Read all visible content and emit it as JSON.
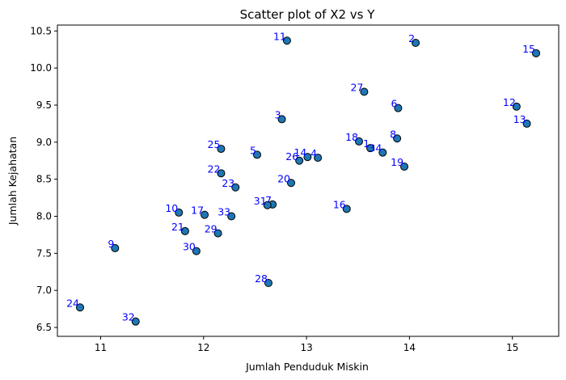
{
  "chart_data": {
    "type": "scatter",
    "title": "Scatter plot of X2 vs Y",
    "xlabel": "Jumlah Penduduk Miskin",
    "ylabel": "Jumlah Kejahatan",
    "xlim": [
      10.58,
      15.45
    ],
    "ylim": [
      6.38,
      10.58
    ],
    "xticks": [
      11,
      12,
      13,
      14,
      15
    ],
    "yticks": [
      6.5,
      7.0,
      7.5,
      8.0,
      8.5,
      9.0,
      9.5,
      10.0,
      10.5
    ],
    "grid": false,
    "marker_color": "#1f77b4",
    "marker_edge_color": "#000000",
    "label_color": "#0000ff",
    "points": [
      {
        "label": "1",
        "x": 13.62,
        "y": 8.92
      },
      {
        "label": "2",
        "x": 14.06,
        "y": 10.34
      },
      {
        "label": "3",
        "x": 12.76,
        "y": 9.31
      },
      {
        "label": "4",
        "x": 13.11,
        "y": 8.79
      },
      {
        "label": "5",
        "x": 12.52,
        "y": 8.83
      },
      {
        "label": "6",
        "x": 13.89,
        "y": 9.46
      },
      {
        "label": "7",
        "x": 12.67,
        "y": 8.16
      },
      {
        "label": "8",
        "x": 13.88,
        "y": 9.05
      },
      {
        "label": "9",
        "x": 11.14,
        "y": 7.57
      },
      {
        "label": "10",
        "x": 11.76,
        "y": 8.05
      },
      {
        "label": "11",
        "x": 12.81,
        "y": 10.37
      },
      {
        "label": "12",
        "x": 15.04,
        "y": 9.48
      },
      {
        "label": "13",
        "x": 15.14,
        "y": 9.25
      },
      {
        "label": "14",
        "x": 13.01,
        "y": 8.8
      },
      {
        "label": "15",
        "x": 15.23,
        "y": 10.2
      },
      {
        "label": "16",
        "x": 13.39,
        "y": 8.1
      },
      {
        "label": "17",
        "x": 12.01,
        "y": 8.02
      },
      {
        "label": "18",
        "x": 13.51,
        "y": 9.01
      },
      {
        "label": "19",
        "x": 13.95,
        "y": 8.67
      },
      {
        "label": "20",
        "x": 12.85,
        "y": 8.45
      },
      {
        "label": "21",
        "x": 11.82,
        "y": 7.8
      },
      {
        "label": "22",
        "x": 12.17,
        "y": 8.58
      },
      {
        "label": "23",
        "x": 12.31,
        "y": 8.39
      },
      {
        "label": "24",
        "x": 10.8,
        "y": 6.77
      },
      {
        "label": "25",
        "x": 12.17,
        "y": 8.91
      },
      {
        "label": "26",
        "x": 12.93,
        "y": 8.75
      },
      {
        "label": "27",
        "x": 13.56,
        "y": 9.68
      },
      {
        "label": "28",
        "x": 12.63,
        "y": 7.1
      },
      {
        "label": "29",
        "x": 12.14,
        "y": 7.77
      },
      {
        "label": "30",
        "x": 11.93,
        "y": 7.53
      },
      {
        "label": "31",
        "x": 12.62,
        "y": 8.15
      },
      {
        "label": "32",
        "x": 11.34,
        "y": 6.58
      },
      {
        "label": "33",
        "x": 12.27,
        "y": 8.0
      },
      {
        "label": "34",
        "x": 13.74,
        "y": 8.86
      }
    ]
  }
}
